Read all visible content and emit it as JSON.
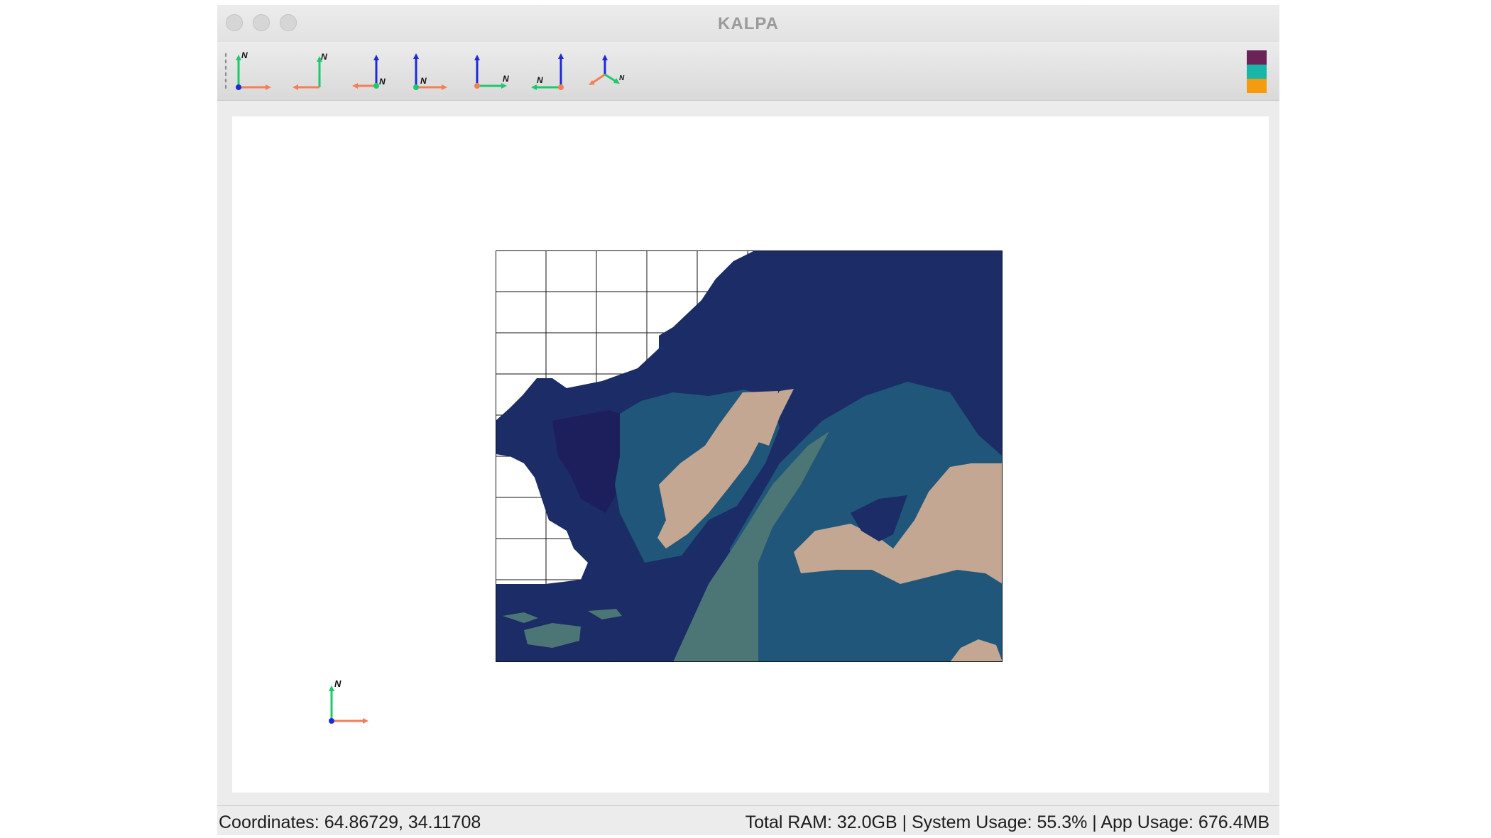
{
  "window": {
    "title": "KALPA"
  },
  "toolbar": {
    "views": [
      {
        "name": "view-north-up-icon",
        "label": "N"
      },
      {
        "name": "view-north-left-icon",
        "label": "N"
      },
      {
        "name": "view-north-down-icon",
        "label": "N"
      },
      {
        "name": "view-north-right-icon",
        "label": "N"
      },
      {
        "name": "view-east-icon",
        "label": "N"
      },
      {
        "name": "view-west-icon",
        "label": "N"
      },
      {
        "name": "view-3d-icon",
        "label": "N"
      }
    ],
    "swatch_colors": [
      "#6a2257",
      "#19b6a8",
      "#f59b10"
    ]
  },
  "map": {
    "colors": {
      "deep": "#1b2c66",
      "darker": "#1d1f5c",
      "mid": "#1f567a",
      "shelf": "#4c7676",
      "land": "#c4a792",
      "grid": "#111111"
    }
  },
  "compass": {
    "label": "N"
  },
  "status": {
    "coordinates": "Coordinates: 64.86729, 34.11708",
    "system": "Total RAM: 32.0GB | System Usage: 55.3% | App Usage: 676.4MB"
  }
}
